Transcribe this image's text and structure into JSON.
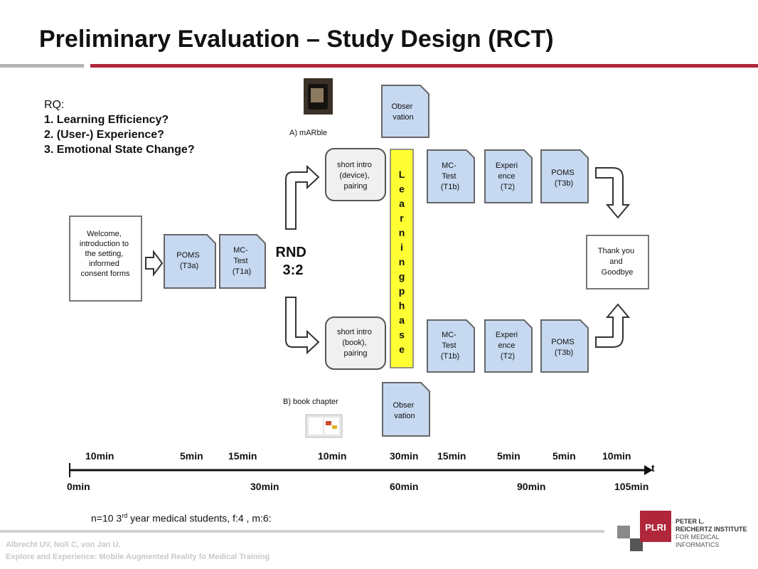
{
  "title": "Preliminary Evaluation – Study Design (RCT)",
  "rq": {
    "label": "RQ:",
    "questions": [
      "1. Learning Efficiency?",
      "2. (User-) Experience?",
      "3. Emotional State Change?"
    ]
  },
  "diagram": {
    "welcome": [
      "Welcome,",
      "introduction to",
      "the setting,",
      "informed",
      "consent forms"
    ],
    "poms_t3a": [
      "POMS",
      "(T3a)"
    ],
    "mc_t1a": [
      "MC-",
      "Test",
      "(T1a)"
    ],
    "rnd": [
      "RND",
      "3:2"
    ],
    "group_a": "A) mARble",
    "group_b": "B) book chapter",
    "intro_a": [
      "short intro",
      "(device),",
      "pairing"
    ],
    "intro_b": [
      "short intro",
      "(book),",
      "pairing"
    ],
    "learning_phase": "Learningphase",
    "observation": [
      "Obser",
      "vation"
    ],
    "mc_t1b": [
      "MC-",
      "Test",
      "(T1b)"
    ],
    "exp_t2": [
      "Experi",
      "ence",
      "(T2)"
    ],
    "poms_t3b": [
      "POMS",
      "(T3b)"
    ],
    "thanks": [
      "Thank you",
      "and",
      "Goodbye"
    ]
  },
  "timeline": {
    "durations": [
      "10min",
      "5min",
      "15min",
      "10min",
      "30min",
      "15min",
      "5min",
      "5min",
      "10min"
    ],
    "cumulative": [
      "0min",
      "30min",
      "60min",
      "90min",
      "105min"
    ],
    "axis_label": "t"
  },
  "sample": {
    "prefix": "n=10  3",
    "sup": "rd",
    "suffix": " year medical students, f:4 , m:6:"
  },
  "footer": {
    "authors": "Albrecht UV, Noll C, von Jan U.",
    "paper": "Explore and Experience: Mobile Augmented Reality fo Medical Training"
  },
  "logo": {
    "abbr": "PLRI",
    "name_line1": "PETER L.",
    "name_line2": "REICHERTZ INSTITUTE",
    "name_line3": "FOR MEDICAL",
    "name_line4": "INFORMATICS"
  },
  "colors": {
    "accent_red": "#b0263a",
    "box_blue": "#c6d9f1",
    "learning_yellow": "#ffff33"
  }
}
